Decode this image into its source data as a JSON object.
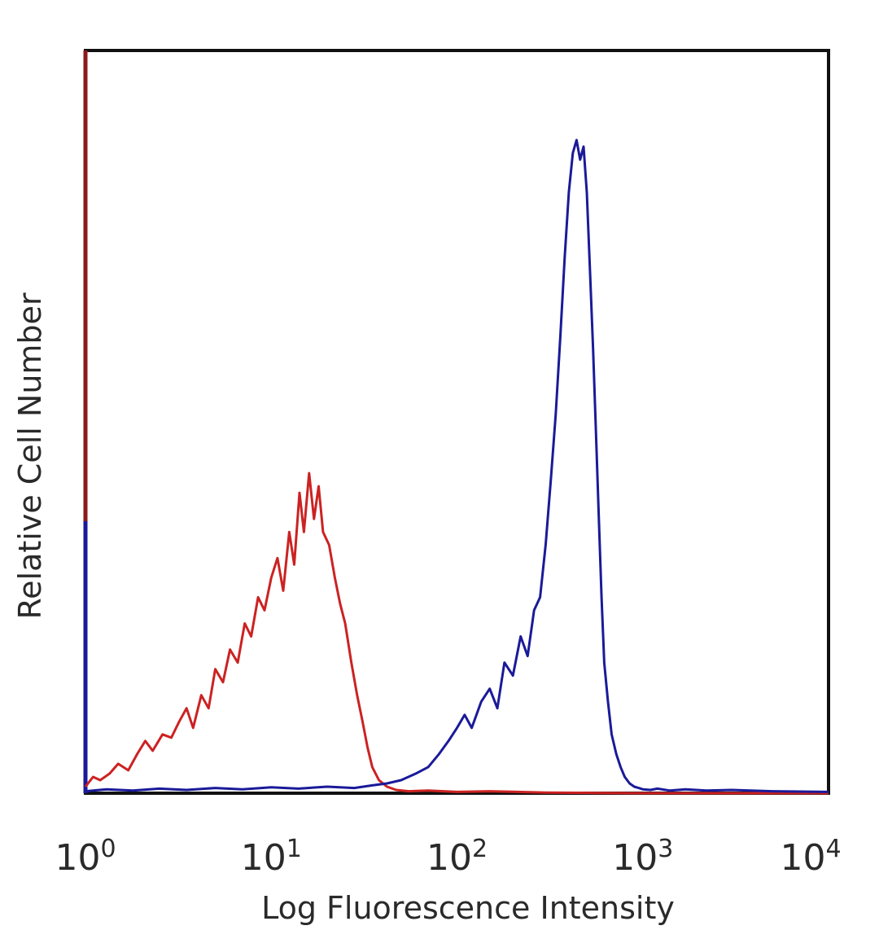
{
  "chart_data": {
    "type": "line",
    "title": "",
    "xlabel": "Log Fluorescence Intensity",
    "ylabel": "Relative Cell Number",
    "x_scale": "log",
    "xlim": [
      1,
      10000
    ],
    "ylim": [
      0,
      1
    ],
    "grid": false,
    "legend": "none",
    "x_ticks": [
      {
        "base": "10",
        "exp": "0",
        "value": 1
      },
      {
        "base": "10",
        "exp": "1",
        "value": 10
      },
      {
        "base": "10",
        "exp": "2",
        "value": 100
      },
      {
        "base": "10",
        "exp": "3",
        "value": 1000
      },
      {
        "base": "10",
        "exp": "4",
        "value": 10000
      }
    ],
    "series": [
      {
        "color": "#cc2222",
        "x": [
          1,
          1.1,
          1.2,
          1.35,
          1.5,
          1.7,
          1.9,
          2.1,
          2.3,
          2.6,
          2.9,
          3.2,
          3.5,
          3.8,
          4.2,
          4.6,
          5.0,
          5.5,
          6.0,
          6.6,
          7.2,
          7.8,
          8.5,
          9.2,
          10,
          10.8,
          11.6,
          12.5,
          13.3,
          14.2,
          15.0,
          16.0,
          17.0,
          18.0,
          19.0,
          20.5,
          22.0,
          23.5,
          25.0,
          27.0,
          29.0,
          31.0,
          33.0,
          35.0,
          38.0,
          42.0,
          47.0,
          55.0,
          70.0,
          100.0,
          150.0,
          300.0,
          1000.0,
          10000.0
        ],
        "y": [
          0.01,
          0.025,
          0.02,
          0.03,
          0.045,
          0.035,
          0.06,
          0.08,
          0.065,
          0.09,
          0.085,
          0.11,
          0.13,
          0.1,
          0.15,
          0.13,
          0.19,
          0.17,
          0.22,
          0.2,
          0.26,
          0.24,
          0.3,
          0.28,
          0.33,
          0.36,
          0.31,
          0.4,
          0.35,
          0.46,
          0.4,
          0.49,
          0.42,
          0.47,
          0.4,
          0.38,
          0.33,
          0.29,
          0.26,
          0.2,
          0.15,
          0.11,
          0.07,
          0.04,
          0.02,
          0.01,
          0.005,
          0.003,
          0.004,
          0.002,
          0.003,
          0.001,
          0.0,
          0.0
        ]
      },
      {
        "color": "#1a1a99",
        "x": [
          1,
          1.3,
          1.8,
          2.5,
          3.5,
          5.0,
          7.0,
          10.0,
          14.0,
          20.0,
          28.0,
          35.0,
          42.0,
          50.0,
          60.0,
          70.0,
          80.0,
          90.0,
          100.0,
          110.0,
          120.0,
          135.0,
          150.0,
          165.0,
          180.0,
          200.0,
          220.0,
          240.0,
          260.0,
          280.0,
          300.0,
          320.0,
          340.0,
          360.0,
          380.0,
          400.0,
          420.0,
          440.0,
          460.0,
          480.0,
          500.0,
          520.0,
          540.0,
          560.0,
          580.0,
          600.0,
          620.0,
          650.0,
          680.0,
          720.0,
          760.0,
          800.0,
          850.0,
          900.0,
          950.0,
          1000.0,
          1100.0,
          1200.0,
          1400.0,
          1700.0,
          2200.0,
          3000.0,
          5000.0,
          10000.0
        ],
        "y": [
          0.003,
          0.006,
          0.004,
          0.007,
          0.005,
          0.008,
          0.006,
          0.009,
          0.007,
          0.01,
          0.008,
          0.012,
          0.015,
          0.02,
          0.03,
          0.04,
          0.06,
          0.08,
          0.1,
          0.12,
          0.1,
          0.14,
          0.16,
          0.13,
          0.2,
          0.18,
          0.24,
          0.21,
          0.28,
          0.3,
          0.38,
          0.48,
          0.58,
          0.7,
          0.82,
          0.92,
          0.98,
          1.0,
          0.97,
          0.99,
          0.92,
          0.8,
          0.68,
          0.55,
          0.42,
          0.3,
          0.2,
          0.14,
          0.09,
          0.06,
          0.04,
          0.025,
          0.015,
          0.01,
          0.008,
          0.006,
          0.005,
          0.007,
          0.004,
          0.006,
          0.004,
          0.005,
          0.003,
          0.002
        ]
      }
    ]
  }
}
